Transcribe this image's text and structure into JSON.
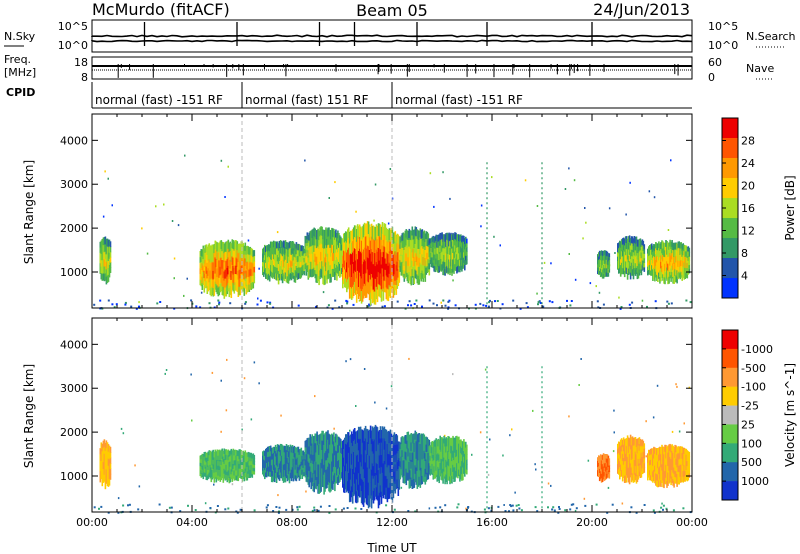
{
  "header": {
    "station": "McMurdo (fitACF)",
    "beam": "Beam 05",
    "date": "24/Jun/2013"
  },
  "strips": {
    "nsky_label": "N.Sky",
    "nsky_ticks": [
      "10^5",
      "10^0"
    ],
    "nsearch_label": "N.Search",
    "nsearch_ticks": [
      "10^5",
      "10^0"
    ],
    "freq_label_1": "Freq.",
    "freq_label_2": "[MHz]",
    "freq_ticks": [
      "18",
      "8"
    ],
    "nave_label": "Nave",
    "nave_ticks": [
      "60",
      "0"
    ],
    "cpid_label": "CPID",
    "cpid_segments": [
      {
        "label": "normal (fast) -151 RF",
        "start": 0,
        "end": 6
      },
      {
        "label": "normal (fast) 151 RF",
        "start": 6,
        "end": 12
      },
      {
        "label": "normal (fast) -151 RF",
        "start": 12,
        "end": 24
      }
    ]
  },
  "chart_data": [
    {
      "type": "heatmap",
      "name": "power",
      "ylabel": "Slant Range [km]",
      "ylim": [
        180,
        4600
      ],
      "yticks": [
        "1000",
        "2000",
        "3000",
        "4000"
      ],
      "xlim": [
        0,
        24
      ],
      "colorbar_label": "Power [dB]",
      "colorbar_ticks": [
        "4",
        "8",
        "12",
        "16",
        "20",
        "24",
        "28"
      ],
      "colorbar_colors": [
        "#0033ff",
        "#2255aa",
        "#339966",
        "#55bb44",
        "#aadd22",
        "#ffcc00",
        "#ff9900",
        "#ff5500",
        "#ee0000"
      ],
      "blobs": [
        {
          "t0": 0.3,
          "t1": 0.75,
          "r0": 800,
          "r1": 1800,
          "intensity": 0.55
        },
        {
          "t0": 4.3,
          "t1": 6.5,
          "r0": 500,
          "r1": 1700,
          "intensity": 0.8
        },
        {
          "t0": 6.8,
          "t1": 8.5,
          "r0": 800,
          "r1": 1700,
          "intensity": 0.55
        },
        {
          "t0": 8.5,
          "t1": 10.0,
          "r0": 800,
          "r1": 2000,
          "intensity": 0.6
        },
        {
          "t0": 10.0,
          "t1": 12.3,
          "r0": 400,
          "r1": 2100,
          "intensity": 0.95
        },
        {
          "t0": 12.3,
          "t1": 13.5,
          "r0": 800,
          "r1": 2000,
          "intensity": 0.6
        },
        {
          "t0": 13.5,
          "t1": 15.0,
          "r0": 1000,
          "r1": 1900,
          "intensity": 0.45
        },
        {
          "t0": 20.2,
          "t1": 20.7,
          "r0": 900,
          "r1": 1500,
          "intensity": 0.45
        },
        {
          "t0": 21.0,
          "t1": 22.1,
          "r0": 900,
          "r1": 1800,
          "intensity": 0.5
        },
        {
          "t0": 22.2,
          "t1": 23.9,
          "r0": 800,
          "r1": 1700,
          "intensity": 0.65
        }
      ]
    },
    {
      "type": "heatmap",
      "name": "velocity",
      "ylabel": "Slant Range [km]",
      "ylim": [
        180,
        4600
      ],
      "yticks": [
        "1000",
        "2000",
        "3000",
        "4000"
      ],
      "xlim": [
        0,
        24
      ],
      "xticks": [
        "00:00",
        "04:00",
        "08:00",
        "12:00",
        "16:00",
        "20:00",
        "00:00"
      ],
      "xlabel": "Time UT",
      "colorbar_label": "Velocity [m s^-1]",
      "colorbar_ticks": [
        "1000",
        "500",
        "100",
        "25",
        "-25",
        "-100",
        "-500",
        "-1000"
      ],
      "colorbar_colors": [
        "#1133cc",
        "#2266aa",
        "#33aa77",
        "#66cc44",
        "#bbbbbb",
        "#ffcc00",
        "#ff9933",
        "#ff5500",
        "#ee0000"
      ],
      "blobs": [
        {
          "t0": 0.3,
          "t1": 0.75,
          "r0": 800,
          "r1": 1800,
          "vel": -100
        },
        {
          "t0": 4.3,
          "t1": 6.5,
          "r0": 900,
          "r1": 1600,
          "vel": 100
        },
        {
          "t0": 6.8,
          "t1": 8.5,
          "r0": 900,
          "r1": 1700,
          "vel": 500
        },
        {
          "t0": 8.5,
          "t1": 10.0,
          "r0": 700,
          "r1": 2000,
          "vel": 500
        },
        {
          "t0": 10.0,
          "t1": 12.3,
          "r0": 400,
          "r1": 2100,
          "vel": 1000
        },
        {
          "t0": 12.3,
          "t1": 13.5,
          "r0": 800,
          "r1": 2000,
          "vel": 500
        },
        {
          "t0": 13.5,
          "t1": 15.0,
          "r0": 900,
          "r1": 1900,
          "vel": 100
        },
        {
          "t0": 20.2,
          "t1": 20.7,
          "r0": 900,
          "r1": 1500,
          "vel": -500
        },
        {
          "t0": 21.0,
          "t1": 22.1,
          "r0": 900,
          "r1": 1900,
          "vel": -100
        },
        {
          "t0": 22.2,
          "t1": 23.9,
          "r0": 800,
          "r1": 1700,
          "vel": -100
        }
      ]
    }
  ]
}
